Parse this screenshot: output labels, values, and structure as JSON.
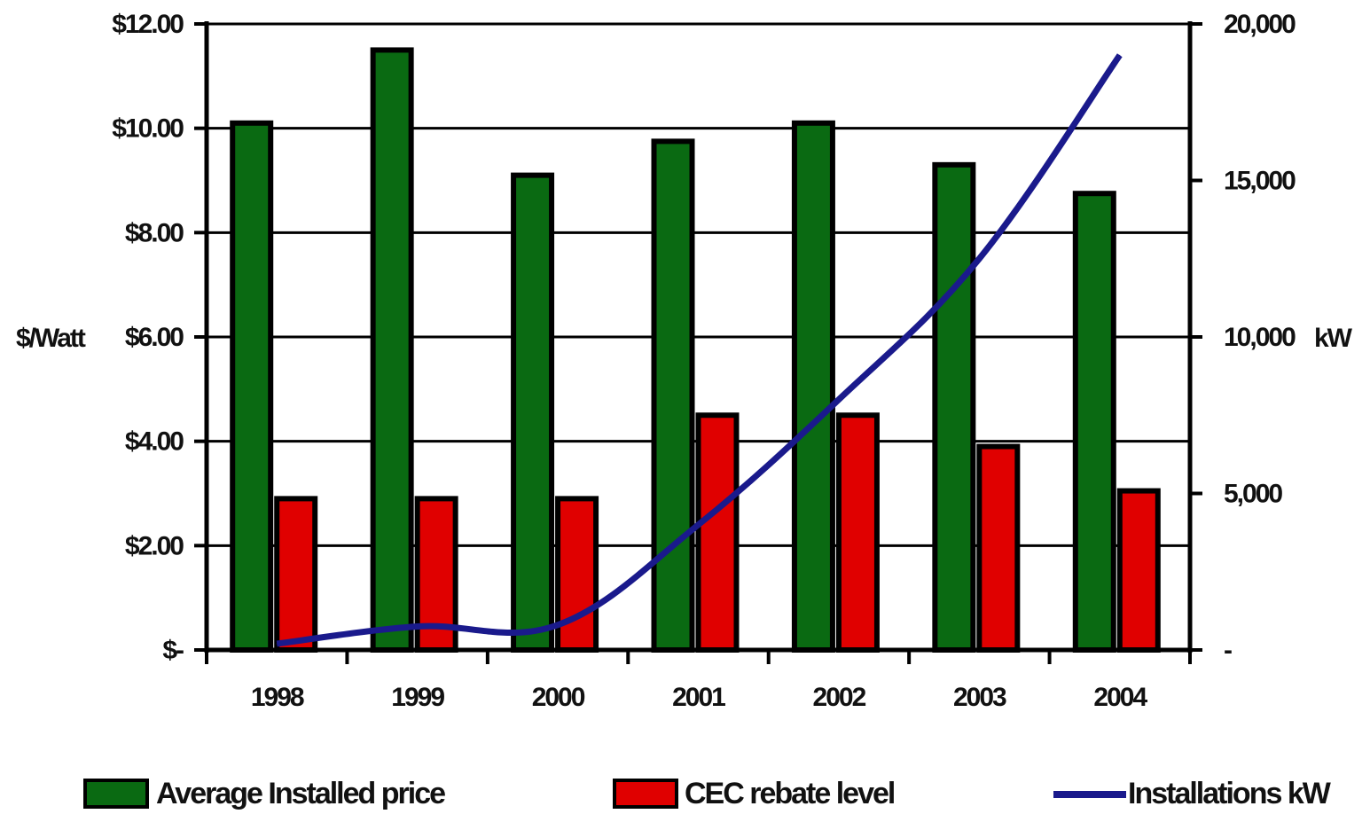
{
  "chart_data": {
    "type": "bar",
    "categories": [
      "1998",
      "1999",
      "2000",
      "2001",
      "2002",
      "2003",
      "2004"
    ],
    "series": [
      {
        "name": "Average Installed price",
        "type": "bar",
        "axis": "left",
        "color": "#0a6a12",
        "values": [
          10.1,
          11.5,
          9.1,
          9.75,
          10.1,
          9.3,
          8.75
        ]
      },
      {
        "name": "CEC rebate level",
        "type": "bar",
        "axis": "left",
        "color": "#e00000",
        "values": [
          2.9,
          2.9,
          2.9,
          4.5,
          4.5,
          3.9,
          3.05
        ]
      },
      {
        "name": "Installations kW",
        "type": "line",
        "axis": "right",
        "color": "#1a1a8c",
        "values": [
          200,
          750,
          800,
          4000,
          8000,
          12500,
          19000
        ]
      }
    ],
    "ylabel": "$/Watt",
    "ylabel_right": "kW",
    "ylim": [
      0,
      12
    ],
    "ylim_right": [
      0,
      20000
    ],
    "yticks": [
      "$12.00",
      "$10.00",
      "$8.00",
      "$6.00",
      "$4.00",
      "$2.00",
      "$-"
    ],
    "yticks_right": [
      "20,000",
      "15,000",
      "10,000",
      "5,000",
      "-"
    ],
    "grid": true,
    "legend": "bottom"
  }
}
